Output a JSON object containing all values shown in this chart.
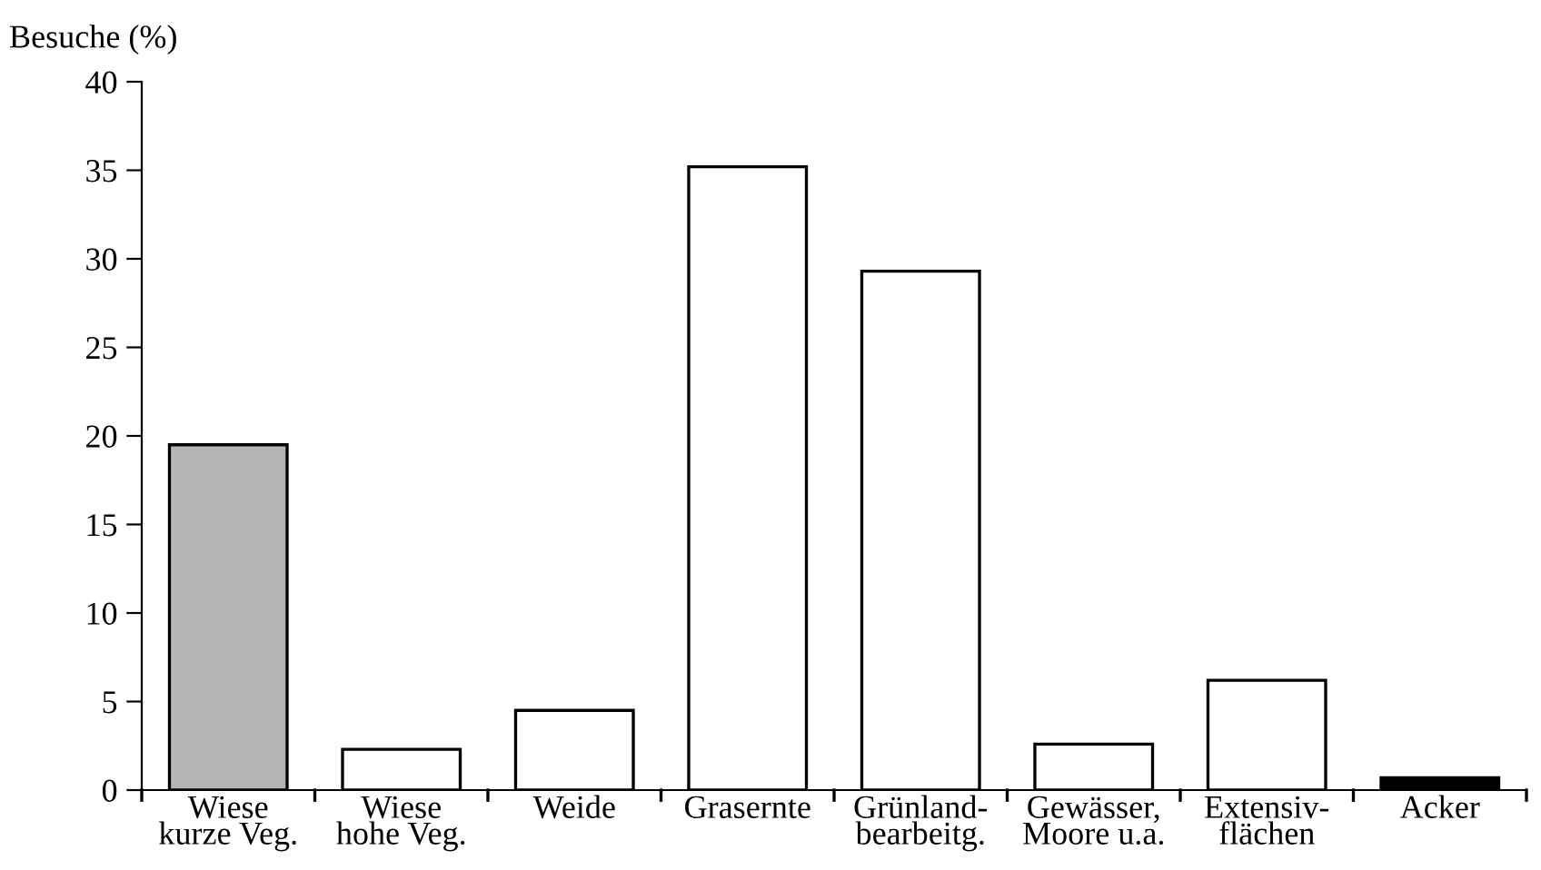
{
  "chart_data": {
    "type": "bar",
    "ylabel": "Besuche (%)",
    "categories": [
      "Wiese\nkurze Veg.",
      "Wiese\nhohe Veg.",
      "Weide",
      "Grasernte",
      "Grünland-\nbearbeitg.",
      "Gewässer,\nMoore u.a.",
      "Extensiv-\nflächen",
      "Acker"
    ],
    "values": [
      19.5,
      2.3,
      4.5,
      35.2,
      29.3,
      2.6,
      6.2,
      0.7
    ],
    "colors": [
      "#b4b4b4",
      "#ffffff",
      "#ffffff",
      "#ffffff",
      "#ffffff",
      "#ffffff",
      "#ffffff",
      "#000000"
    ],
    "ylim": [
      0,
      40
    ],
    "yticks": [
      0,
      5,
      10,
      15,
      20,
      25,
      30,
      35,
      40
    ],
    "grid": false
  }
}
